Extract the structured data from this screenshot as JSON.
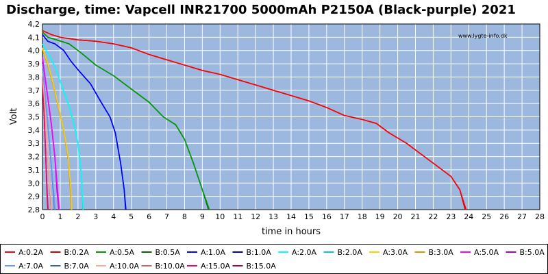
{
  "chart_data": {
    "type": "line",
    "title": "Discharge, time: Vapcell INR21700 5000mAh P2150A (Black-purple) 2021",
    "xlabel": "time in hours",
    "ylabel": "Volt",
    "watermark": "www.lygte-info.dk",
    "xlim": [
      0,
      28
    ],
    "ylim": [
      2.8,
      4.2
    ],
    "xticks": [
      "0",
      "1",
      "2",
      "3",
      "4",
      "5",
      "6",
      "7",
      "8",
      "9",
      "10",
      "11",
      "12",
      "13",
      "14",
      "15",
      "16",
      "17",
      "18",
      "19",
      "20",
      "21",
      "22",
      "23",
      "24",
      "25",
      "26",
      "27",
      "28"
    ],
    "yticks": [
      "2,8",
      "2,9",
      "3,0",
      "3,1",
      "3,2",
      "3,3",
      "3,4",
      "3,5",
      "3,6",
      "3,7",
      "3,8",
      "3,9",
      "4,0",
      "4,1",
      "4,2"
    ],
    "grid": true,
    "legend_position": "bottom",
    "series": [
      {
        "name": "A:0.2A",
        "color": "#ff0000",
        "x": [
          0,
          0.5,
          1,
          2,
          3,
          4,
          5,
          6,
          7,
          8,
          9,
          10,
          11,
          12,
          13,
          14,
          15,
          16,
          17,
          18,
          18.8,
          19.5,
          20.5,
          21.5,
          22.5,
          23,
          23.5,
          23.85
        ],
        "y": [
          4.15,
          4.12,
          4.1,
          4.08,
          4.07,
          4.05,
          4.02,
          3.97,
          3.93,
          3.89,
          3.85,
          3.82,
          3.78,
          3.74,
          3.7,
          3.66,
          3.62,
          3.57,
          3.51,
          3.48,
          3.45,
          3.38,
          3.3,
          3.2,
          3.1,
          3.05,
          2.95,
          2.8
        ]
      },
      {
        "name": "B:0.2A",
        "color": "#cc0000",
        "x": [
          0,
          0.5,
          1,
          2,
          3,
          4,
          5,
          6,
          7,
          8,
          9,
          10,
          11,
          12,
          13,
          14,
          15,
          16,
          17,
          18,
          18.8,
          19.5,
          20.5,
          21.5,
          22.5,
          23,
          23.5,
          23.8
        ],
        "y": [
          4.15,
          4.12,
          4.1,
          4.08,
          4.07,
          4.05,
          4.02,
          3.97,
          3.93,
          3.89,
          3.85,
          3.82,
          3.78,
          3.74,
          3.7,
          3.66,
          3.62,
          3.57,
          3.51,
          3.48,
          3.45,
          3.38,
          3.3,
          3.2,
          3.1,
          3.05,
          2.95,
          2.8
        ]
      },
      {
        "name": "A:0.5A",
        "color": "#009900",
        "x": [
          0,
          0.3,
          0.8,
          1.5,
          2.2,
          3,
          4,
          5,
          6,
          6.8,
          7.5,
          8,
          8.5,
          9,
          9.4
        ],
        "y": [
          4.14,
          4.1,
          4.08,
          4.05,
          3.98,
          3.89,
          3.81,
          3.71,
          3.61,
          3.5,
          3.44,
          3.33,
          3.15,
          2.95,
          2.8
        ]
      },
      {
        "name": "B:0.5A",
        "color": "#006600",
        "x": [
          0,
          0.3,
          0.8,
          1.5,
          2.2,
          3,
          4,
          5,
          6,
          6.8,
          7.5,
          8,
          8.5,
          9,
          9.35
        ],
        "y": [
          4.14,
          4.1,
          4.08,
          4.05,
          3.98,
          3.89,
          3.81,
          3.71,
          3.61,
          3.5,
          3.44,
          3.33,
          3.15,
          2.95,
          2.8
        ]
      },
      {
        "name": "A:1.0A",
        "color": "#0000ff",
        "x": [
          0,
          0.3,
          0.7,
          1.2,
          1.6,
          2.1,
          2.7,
          3.3,
          3.8,
          4.1,
          4.4,
          4.6,
          4.7
        ],
        "y": [
          4.12,
          4.07,
          4.05,
          4.0,
          3.92,
          3.84,
          3.75,
          3.61,
          3.5,
          3.38,
          3.15,
          2.95,
          2.8
        ]
      },
      {
        "name": "B:1.0A",
        "color": "#0000aa",
        "x": [
          0,
          0.3,
          0.7,
          1.2,
          1.6,
          2.1,
          2.7,
          3.3,
          3.8,
          4.1,
          4.4,
          4.6,
          4.68
        ],
        "y": [
          4.12,
          4.07,
          4.05,
          4.0,
          3.92,
          3.84,
          3.75,
          3.61,
          3.5,
          3.38,
          3.15,
          2.95,
          2.8
        ]
      },
      {
        "name": "A:2.0A",
        "color": "#00ffff",
        "x": [
          0,
          0.3,
          0.7,
          1.1,
          1.5,
          1.8,
          2.0,
          2.2,
          2.3
        ],
        "y": [
          4.05,
          3.98,
          3.88,
          3.73,
          3.58,
          3.43,
          3.3,
          3.05,
          2.8
        ]
      },
      {
        "name": "B:2.0A",
        "color": "#00cccc",
        "x": [
          0,
          0.3,
          0.7,
          1.1,
          1.5,
          1.8,
          2.0,
          2.2,
          2.28
        ],
        "y": [
          4.05,
          3.98,
          3.88,
          3.73,
          3.58,
          3.43,
          3.3,
          3.05,
          2.8
        ]
      },
      {
        "name": "A:3.0A",
        "color": "#ffcc00",
        "x": [
          0,
          0.3,
          0.6,
          0.9,
          1.2,
          1.45,
          1.6,
          1.65
        ],
        "y": [
          4.02,
          3.9,
          3.75,
          3.58,
          3.4,
          3.2,
          2.95,
          2.8
        ]
      },
      {
        "name": "B:3.0A",
        "color": "#cc9900",
        "x": [
          0,
          0.3,
          0.6,
          0.9,
          1.2,
          1.45,
          1.58,
          1.62
        ],
        "y": [
          4.01,
          3.89,
          3.74,
          3.57,
          3.39,
          3.18,
          2.93,
          2.8
        ]
      },
      {
        "name": "A:5.0A",
        "color": "#ff00ff",
        "x": [
          0,
          0.25,
          0.5,
          0.7,
          0.85,
          0.95
        ],
        "y": [
          3.95,
          3.7,
          3.45,
          3.2,
          2.95,
          2.8
        ]
      },
      {
        "name": "B:5.0A",
        "color": "#aa00cc",
        "x": [
          0,
          0.25,
          0.5,
          0.7,
          0.82,
          0.92
        ],
        "y": [
          3.94,
          3.69,
          3.44,
          3.19,
          2.94,
          2.8
        ]
      },
      {
        "name": "A:7.0A",
        "color": "#6699ff",
        "x": [
          0,
          0.2,
          0.4,
          0.55,
          0.65,
          0.7
        ],
        "y": [
          3.9,
          3.6,
          3.3,
          3.05,
          2.9,
          2.8
        ]
      },
      {
        "name": "B:7.0A",
        "color": "#336699",
        "x": [
          0,
          0.2,
          0.4,
          0.55,
          0.63,
          0.68
        ],
        "y": [
          3.89,
          3.59,
          3.29,
          3.04,
          2.9,
          2.8
        ]
      },
      {
        "name": "A:10.0A",
        "color": "#ffaa99",
        "x": [
          0,
          0.15,
          0.3,
          0.4,
          0.48,
          0.52
        ],
        "y": [
          3.85,
          3.55,
          3.25,
          3.0,
          2.88,
          2.8
        ]
      },
      {
        "name": "B:10.0A",
        "color": "#cc6666",
        "x": [
          0,
          0.15,
          0.3,
          0.4,
          0.46,
          0.5
        ],
        "y": [
          3.84,
          3.54,
          3.24,
          2.99,
          2.87,
          2.8
        ]
      },
      {
        "name": "A:15.0A",
        "color": "#ff0066",
        "x": [
          0,
          0.1,
          0.2,
          0.27,
          0.32
        ],
        "y": [
          3.8,
          3.5,
          3.15,
          2.92,
          2.8
        ]
      },
      {
        "name": "B:15.0A",
        "color": "#aa0044",
        "x": [
          0,
          0.1,
          0.2,
          0.26,
          0.3
        ],
        "y": [
          3.79,
          3.49,
          3.14,
          2.91,
          2.8
        ]
      }
    ]
  }
}
